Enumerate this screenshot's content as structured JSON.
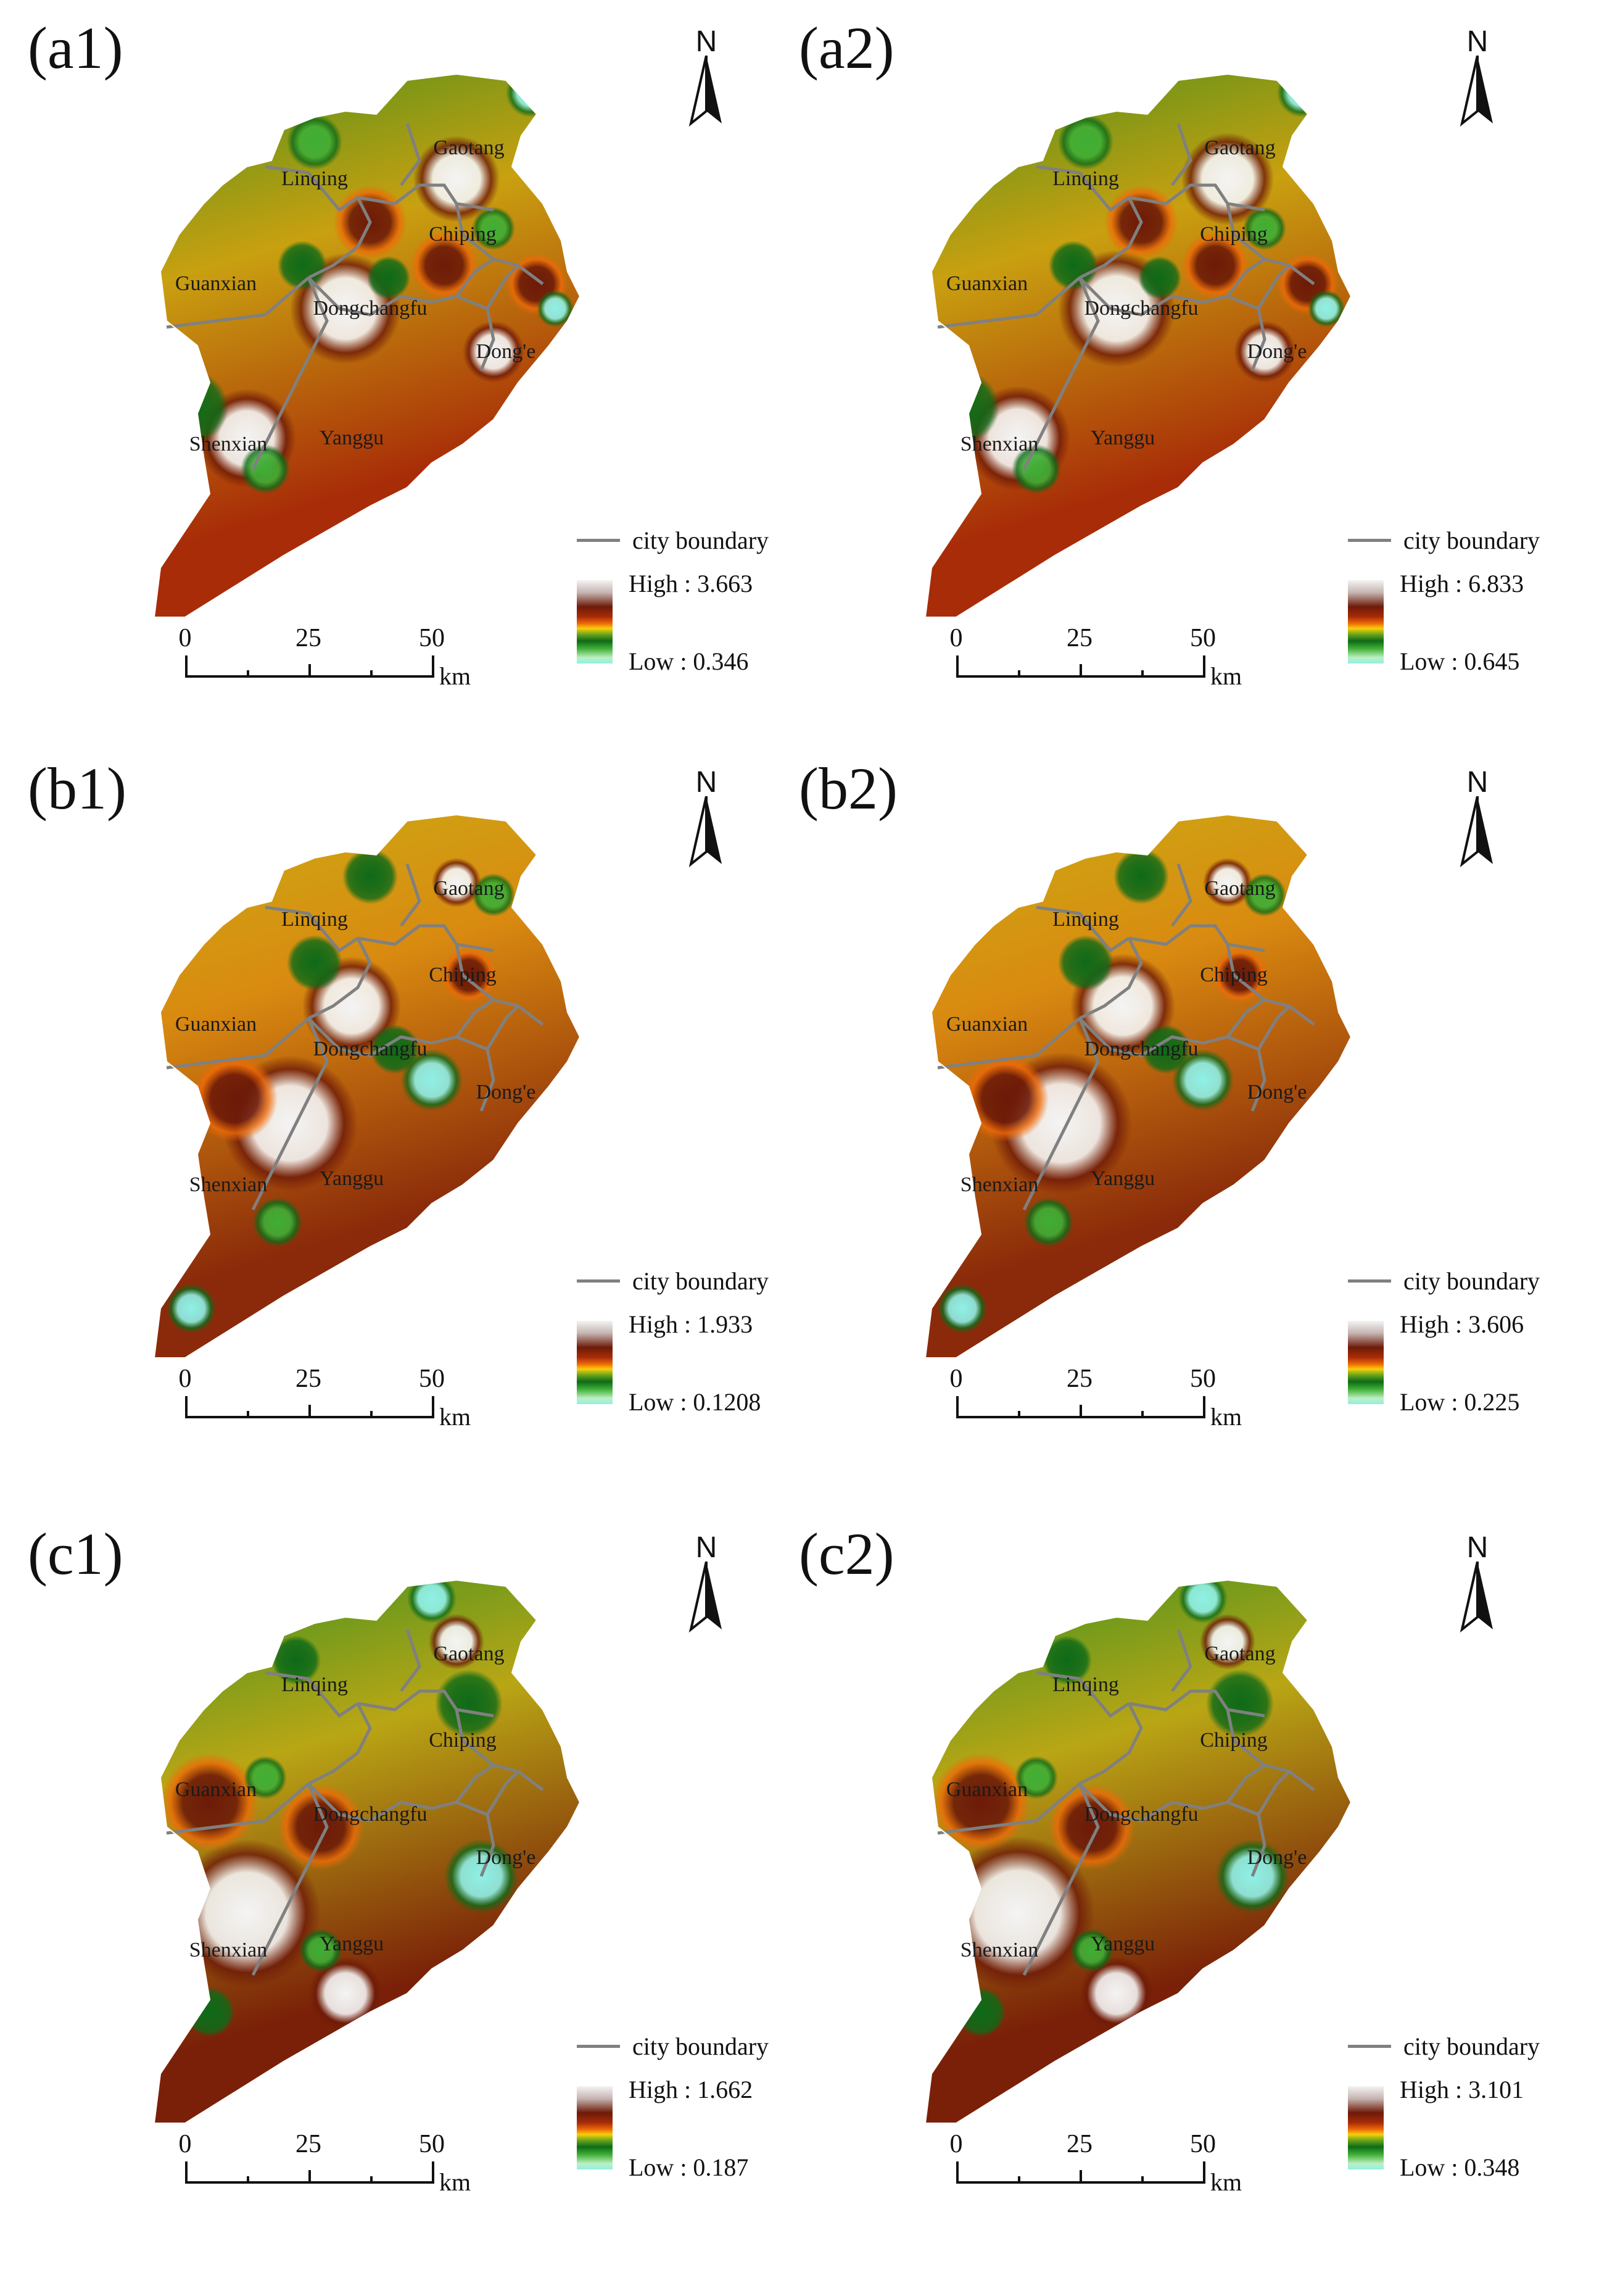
{
  "north_letter": "N",
  "legend_boundary_label": "city boundary",
  "scale_ticks": [
    "0",
    "25",
    "50"
  ],
  "scale_unit": "km",
  "place_names": {
    "linqing": "Linqing",
    "gaotang": "Gaotang",
    "chiping": "Chiping",
    "guanxian": "Guanxian",
    "dongchangfu": "Dongchangfu",
    "donge": "Dong'e",
    "shenxian": "Shenxian",
    "yanggu": "Yanggu"
  },
  "panels": [
    {
      "id": "a1",
      "label": "(a1)",
      "high": "High : 3.663",
      "low": "Low : 0.346"
    },
    {
      "id": "a2",
      "label": "(a2)",
      "high": "High : 6.833",
      "low": "Low : 0.645"
    },
    {
      "id": "b1",
      "label": "(b1)",
      "high": "High : 1.933",
      "low": "Low : 0.1208"
    },
    {
      "id": "b2",
      "label": "(b2)",
      "high": "High : 3.606",
      "low": "Low : 0.225"
    },
    {
      "id": "c1",
      "label": "(c1)",
      "high": "High : 1.662",
      "low": "Low : 0.187"
    },
    {
      "id": "c2",
      "label": "(c2)",
      "high": "High : 3.101",
      "low": "Low : 0.348"
    }
  ],
  "colors": {
    "boundary": "#808080",
    "high": "#f4f4f4",
    "dark_red": "#6d1a08",
    "red": "#a82c08",
    "orange": "#ee6a08",
    "yellow": "#f7cf0a",
    "green": "#0e6a18",
    "light_green": "#3fae35",
    "low": "#8ff0e6"
  }
}
